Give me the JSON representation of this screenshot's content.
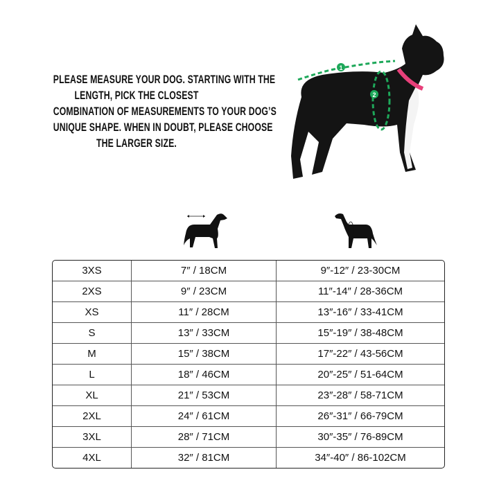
{
  "instructions": [
    "PLEASE MEASURE YOUR DOG. STARTING WITH THE",
    "LENGTH, PICK THE CLOSEST",
    "COMBINATION OF MEASUREMENTS TO YOUR DOG’S",
    "UNIQUE SHAPE. WHEN IN DOUBT, PLEASE CHOOSE",
    "THE LARGER SIZE."
  ],
  "photo": {
    "markers": [
      "1",
      "2"
    ],
    "measure_color": "#1ea85a",
    "collar_color": "#e8407a"
  },
  "column_icons": [
    "dog-length-icon",
    "dog-girth-icon"
  ],
  "rows": [
    [
      "3XS",
      "7″ / 18CM",
      "9″-12″ / 23-30CM"
    ],
    [
      "2XS",
      "9″ / 23CM",
      "11″-14″ / 28-36CM"
    ],
    [
      "XS",
      "11″ / 28CM",
      "13″-16″ / 33-41CM"
    ],
    [
      "S",
      "13″ / 33CM",
      "15″-19″ / 38-48CM"
    ],
    [
      "M",
      "15″ / 38CM",
      "17″-22″ / 43-56CM"
    ],
    [
      "L",
      "18″ / 46CM",
      "20″-25″ / 51-64CM"
    ],
    [
      "XL",
      "21″ / 53CM",
      "23″-28″ / 58-71CM"
    ],
    [
      "2XL",
      "24″ / 61CM",
      "26″-31″ / 66-79CM"
    ],
    [
      "3XL",
      "28″ / 71CM",
      "30″-35″ / 76-89CM"
    ],
    [
      "4XL",
      "32″ / 81CM",
      "34″-40″ / 86-102CM"
    ]
  ]
}
